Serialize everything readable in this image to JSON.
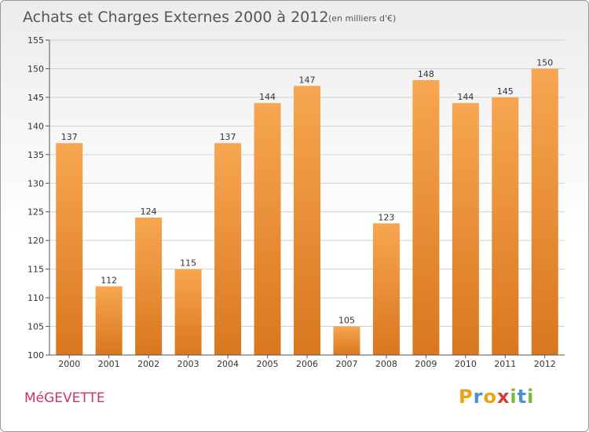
{
  "chart_data": {
    "type": "bar",
    "title": "Achats et Charges Externes 2000 à 2012",
    "subtitle": "(en milliers d'€)",
    "categories": [
      "2000",
      "2001",
      "2002",
      "2003",
      "2004",
      "2005",
      "2006",
      "2007",
      "2008",
      "2009",
      "2010",
      "2011",
      "2012"
    ],
    "values": [
      137,
      112,
      124,
      115,
      137,
      144,
      147,
      105,
      123,
      148,
      144,
      145,
      150
    ],
    "ylim": [
      100,
      155
    ],
    "yticks": [
      100,
      105,
      110,
      115,
      120,
      125,
      130,
      135,
      140,
      145,
      150,
      155
    ],
    "grid": true,
    "xlabel": "",
    "ylabel": "",
    "colors": {
      "bar_top": "#f7a651",
      "bar_bottom": "#d9771e",
      "grid": "#d0d0d0"
    }
  },
  "footer": {
    "town": "MéGEVETTE",
    "brand_letters": [
      {
        "ch": "P",
        "color": "#e8a317"
      },
      {
        "ch": "r",
        "color": "#4a90d9"
      },
      {
        "ch": "o",
        "color": "#e8a317"
      },
      {
        "ch": "x",
        "color": "#d93a3a"
      },
      {
        "ch": "i",
        "color": "#79b83c"
      },
      {
        "ch": "t",
        "color": "#4a90d9"
      },
      {
        "ch": "i",
        "color": "#79b83c"
      }
    ]
  }
}
